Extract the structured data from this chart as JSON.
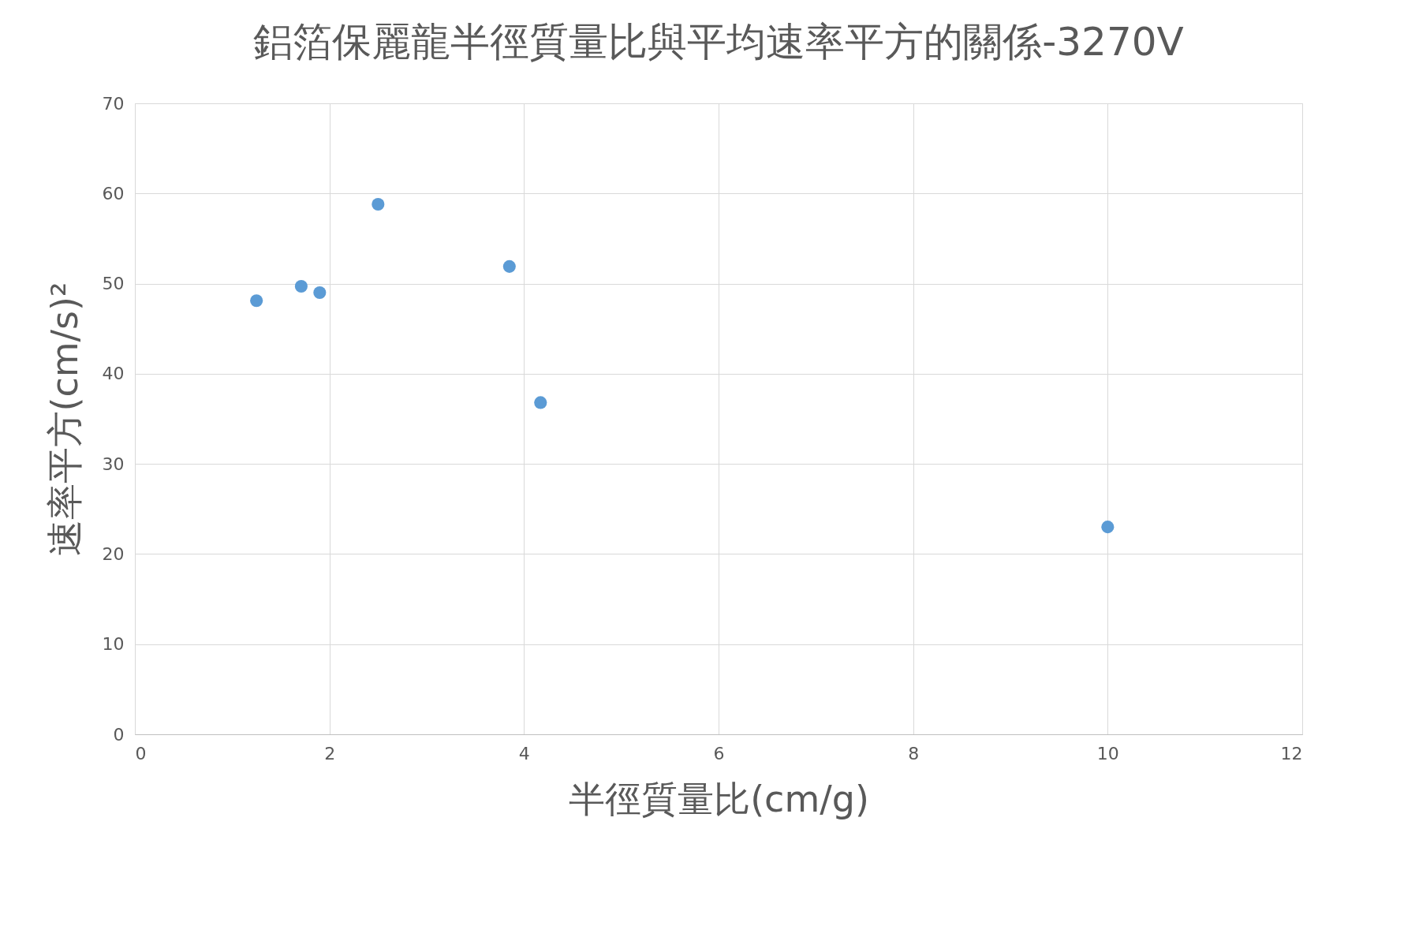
{
  "chart_data": {
    "type": "scatter",
    "title": "鋁箔保麗龍半徑質量比與平均速率平方的關係-3270V",
    "xlabel": "半徑質量比(cm/g)",
    "ylabel": "速率平方(cm/s)²",
    "x": [
      1.25,
      1.71,
      1.9,
      2.5,
      3.85,
      4.17,
      10.0
    ],
    "series": [
      {
        "color": "#5b9bd5",
        "values": [
          48.1,
          49.7,
          49.0,
          58.8,
          51.9,
          36.8,
          23.0
        ]
      }
    ],
    "xlim": [
      0,
      12
    ],
    "xticks": [
      0,
      2,
      4,
      6,
      8,
      10,
      12
    ],
    "ylim": [
      0,
      70
    ],
    "yticks": [
      0,
      10,
      20,
      30,
      40,
      50,
      60,
      70
    ],
    "grid": true,
    "marker": "circle"
  }
}
